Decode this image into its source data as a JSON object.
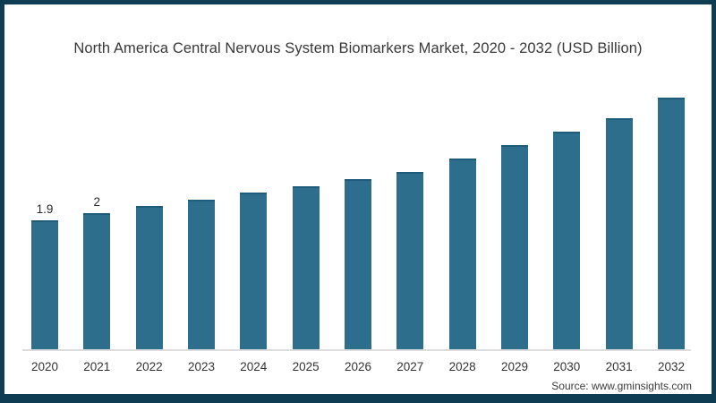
{
  "frame": {
    "border_color": "#0e3c52",
    "background_color": "#ffffff"
  },
  "chart_data": {
    "type": "bar",
    "title": "North America Central Nervous System Biomarkers Market, 2020 - 2032 (USD Billion)",
    "categories": [
      "2020",
      "2021",
      "2022",
      "2023",
      "2024",
      "2025",
      "2026",
      "2027",
      "2028",
      "2029",
      "2030",
      "2031",
      "2032"
    ],
    "values": [
      1.9,
      2.0,
      2.1,
      2.2,
      2.3,
      2.4,
      2.5,
      2.6,
      2.8,
      3.0,
      3.2,
      3.4,
      3.7
    ],
    "data_labels": [
      "1.9",
      "2",
      "",
      "",
      "",
      "",
      "",
      "",
      "",
      "",
      "",
      "",
      ""
    ],
    "xlabel": "",
    "ylabel": "",
    "ylim": [
      0,
      4
    ],
    "gridlines": false,
    "legend": false,
    "bar_color": "#2d6e8c",
    "bar_top_edge_color": "#1f5b7b",
    "axis_line_color": "#dcdcdc"
  },
  "footer": {
    "source": "Source: www.gminsights.com"
  }
}
